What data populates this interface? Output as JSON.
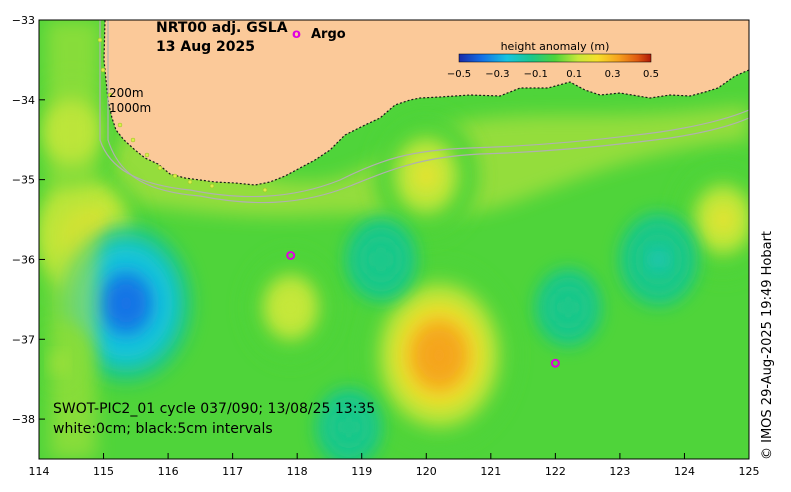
{
  "title": {
    "product": "NRT00 adj. GSLA",
    "date": "13 Aug 2025"
  },
  "legend": {
    "argo_marker": "o",
    "argo_label": "Argo",
    "colorbar_title": "height anomaly (m)",
    "colorbar_ticks": [
      "−0.5",
      "−0.3",
      "−0.1",
      "0.1",
      "0.3",
      "0.5"
    ],
    "colorbar_range": [
      -0.5,
      0.5
    ]
  },
  "isobaths": {
    "shallow": "200m",
    "deep": "1000m"
  },
  "axes": {
    "x_ticks": [
      "114",
      "115",
      "116",
      "117",
      "118",
      "119",
      "120",
      "121",
      "122",
      "123",
      "124",
      "125"
    ],
    "y_ticks": [
      "−33",
      "−34",
      "−35",
      "−36",
      "−37",
      "−38"
    ],
    "lon_range": [
      114,
      125
    ],
    "lat_range": [
      -38.5,
      -33
    ]
  },
  "annotations": {
    "swot_pass": "SWOT-PIC2_01 cycle 037/090; 13/08/25 13:35",
    "contour_note": "white:0cm; black:5cm intervals"
  },
  "credit": "© IMOS 29-Aug-2025 19:49 Hobart",
  "colors": {
    "land": "#fbc999",
    "argo": "#e000e0",
    "field_base": "#4fd43a"
  },
  "argo_floats": [
    {
      "lon": 117.9,
      "lat": -35.95
    },
    {
      "lon": 122.0,
      "lat": -37.3
    }
  ],
  "anomaly_features": [
    {
      "lon": 120.2,
      "lat": -37.2,
      "value": 0.42
    },
    {
      "lon": 120.0,
      "lat": -34.95,
      "value": 0.25
    },
    {
      "lon": 124.6,
      "lat": -35.5,
      "value": 0.22
    },
    {
      "lon": 117.9,
      "lat": -36.6,
      "value": 0.2
    },
    {
      "lon": 114.7,
      "lat": -35.7,
      "value": 0.3
    },
    {
      "lon": 114.5,
      "lat": -34.4,
      "value": 0.2
    },
    {
      "lon": 115.35,
      "lat": -36.55,
      "value": -0.35
    },
    {
      "lon": 119.3,
      "lat": -36.0,
      "value": -0.12
    },
    {
      "lon": 122.2,
      "lat": -36.6,
      "value": -0.1
    },
    {
      "lon": 123.6,
      "lat": -36.0,
      "value": -0.15
    },
    {
      "lon": 118.8,
      "lat": -38.1,
      "value": -0.1
    },
    {
      "lon": 114.3,
      "lat": -37.3,
      "value": 0.12
    }
  ]
}
